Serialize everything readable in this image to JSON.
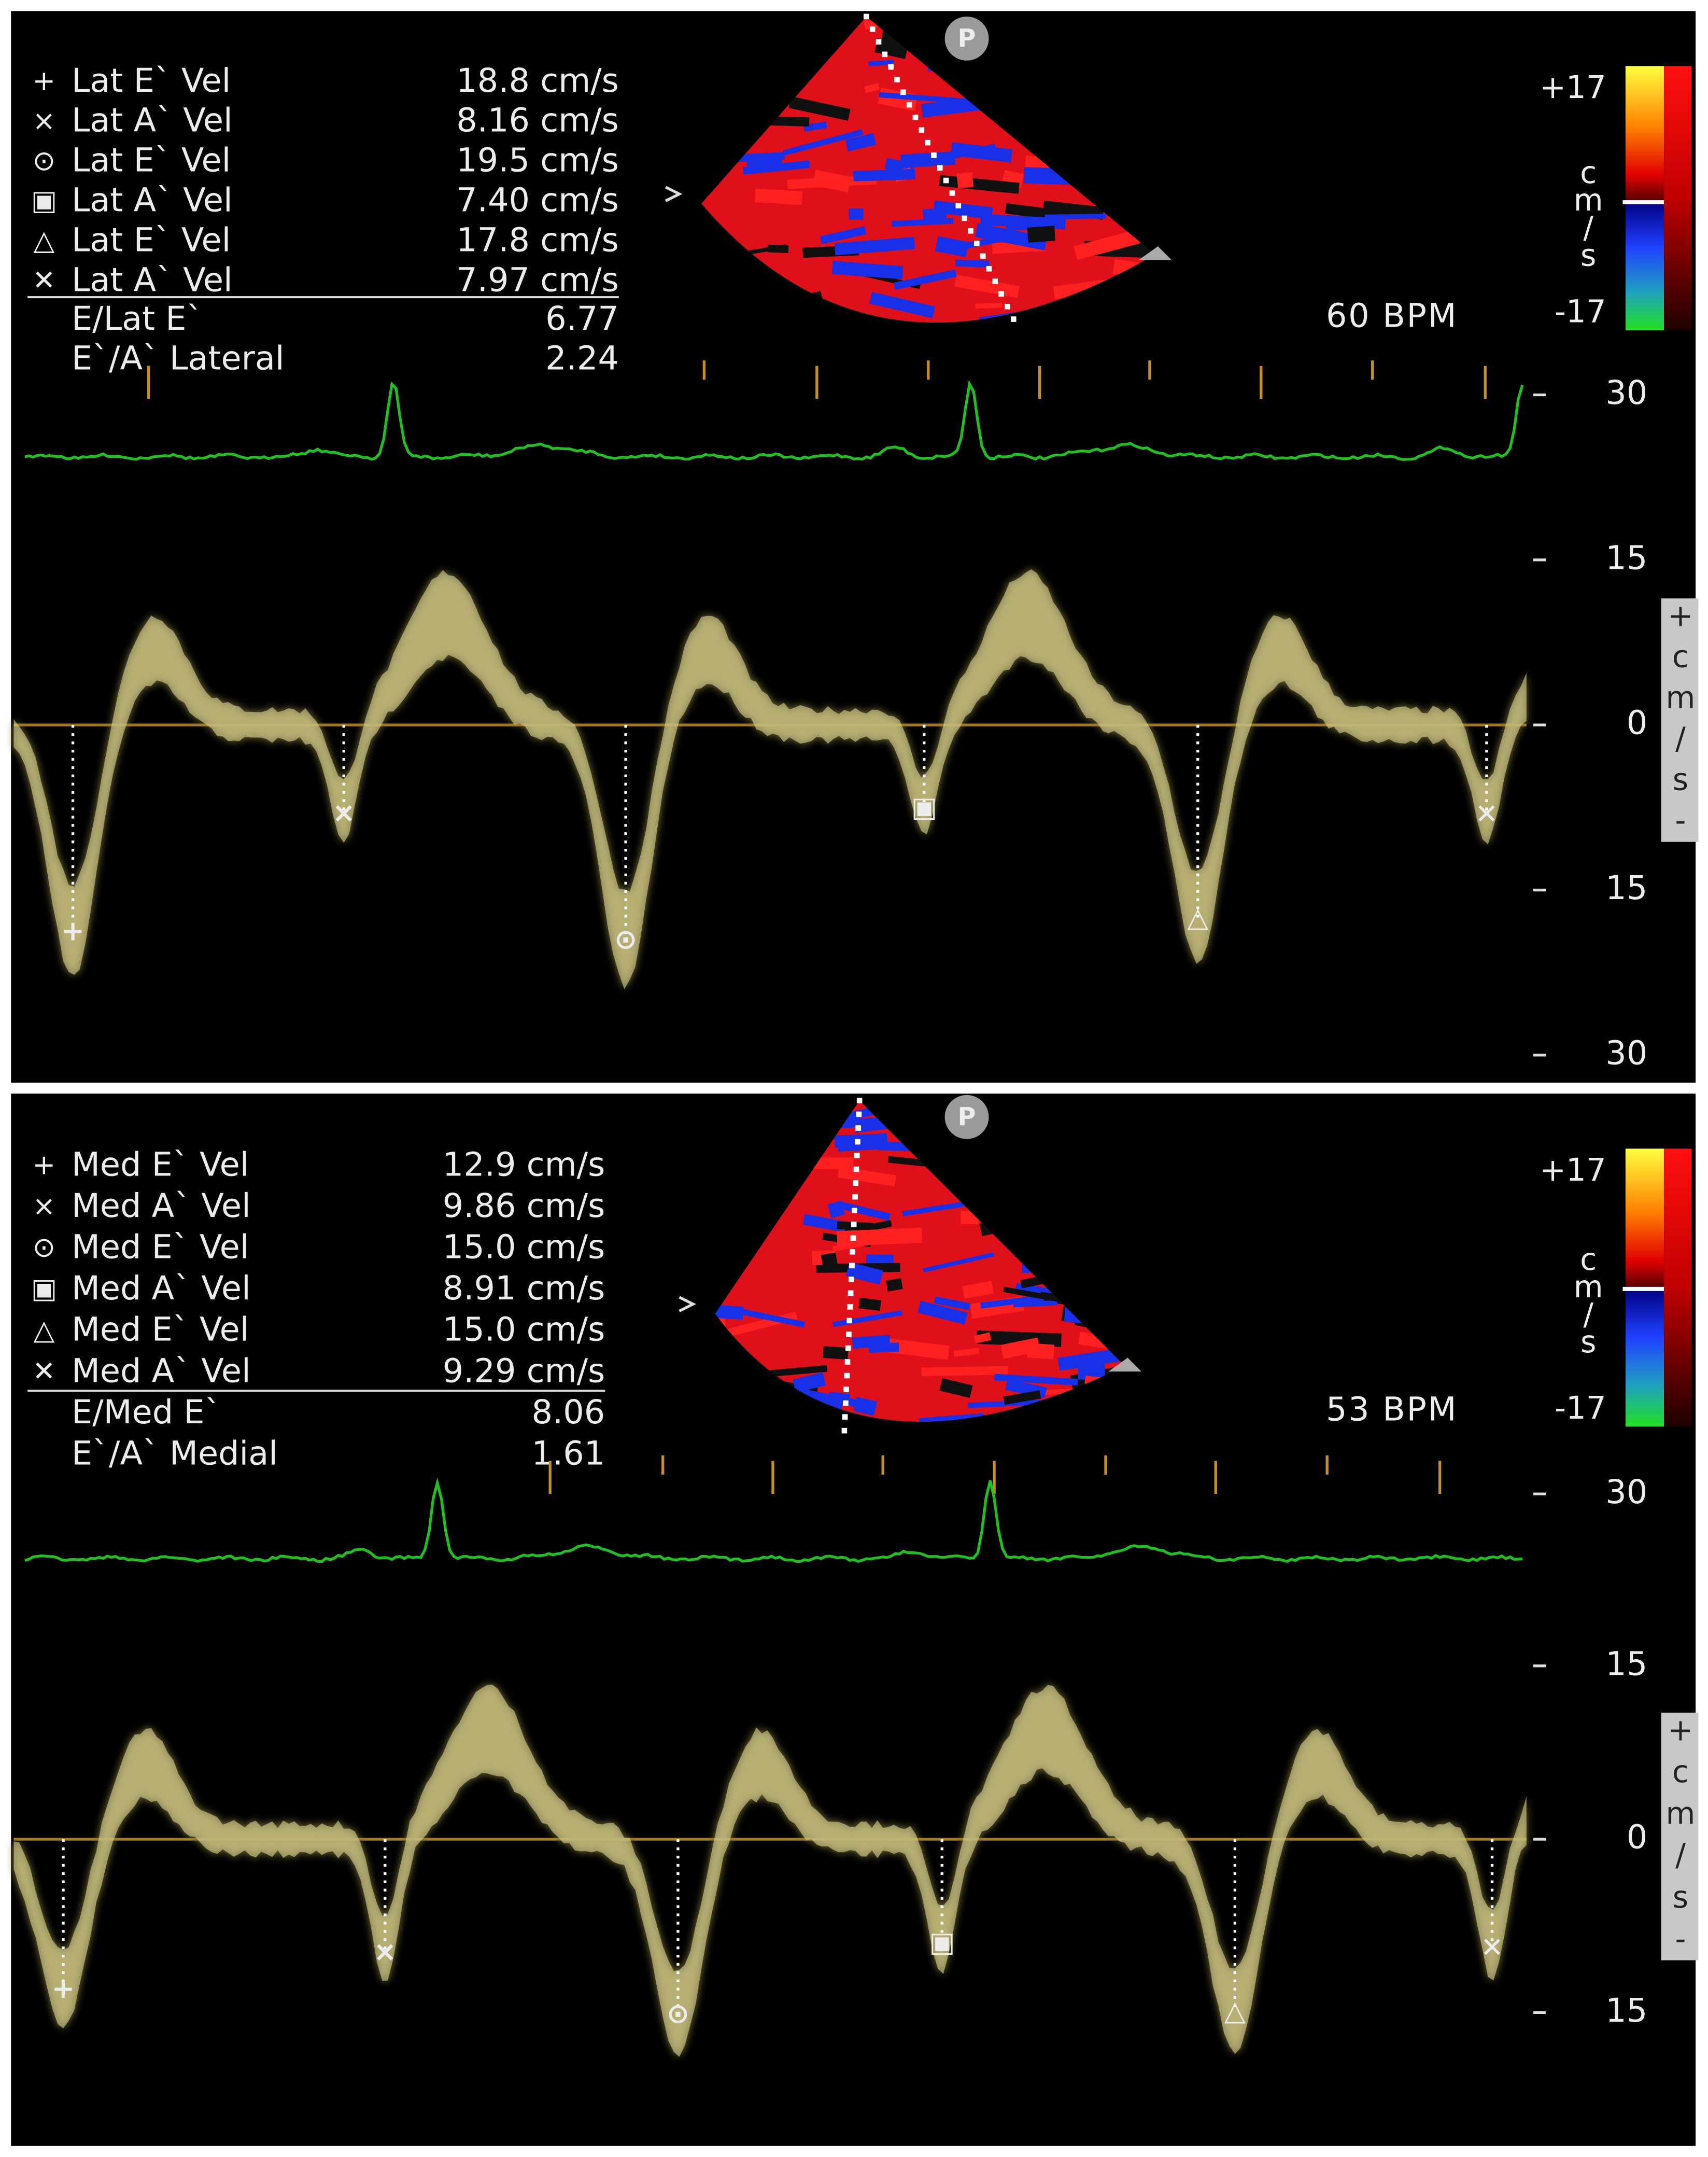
{
  "panels": [
    {
      "measurements": [
        {
          "symbol": "+",
          "name": "Lat E` Vel",
          "value": "18.8 cm/s"
        },
        {
          "symbol": "×",
          "name": "Lat A` Vel",
          "value": "8.16 cm/s"
        },
        {
          "symbol": "⊙",
          "name": "Lat E` Vel",
          "value": "19.5 cm/s"
        },
        {
          "symbol": "▣",
          "name": "Lat A` Vel",
          "value": "7.40 cm/s"
        },
        {
          "symbol": "△",
          "name": "Lat E` Vel",
          "value": "17.8 cm/s"
        },
        {
          "symbol": "✕",
          "name": "Lat A` Vel",
          "value": "7.97 cm/s"
        }
      ],
      "derived": [
        {
          "name": "E/Lat E`",
          "value": "6.77"
        },
        {
          "name": "E`/A` Lateral",
          "value": "2.24"
        }
      ],
      "marker": "P",
      "heart_rate": "60 BPM",
      "color_scale": {
        "max": "+17",
        "min": "-17",
        "unit": [
          "c",
          "m",
          "/",
          "s"
        ]
      },
      "velocity_axis": [
        "30",
        "15",
        "0",
        "15",
        "30"
      ],
      "side_label": [
        "+",
        "c",
        "m",
        "/",
        "s",
        "-"
      ]
    },
    {
      "measurements": [
        {
          "symbol": "+",
          "name": "Med E` Vel",
          "value": "12.9 cm/s"
        },
        {
          "symbol": "×",
          "name": "Med A` Vel",
          "value": "9.86 cm/s"
        },
        {
          "symbol": "⊙",
          "name": "Med E` Vel",
          "value": "15.0 cm/s"
        },
        {
          "symbol": "▣",
          "name": "Med A` Vel",
          "value": "8.91 cm/s"
        },
        {
          "symbol": "△",
          "name": "Med E` Vel",
          "value": "15.0 cm/s"
        },
        {
          "symbol": "✕",
          "name": "Med A` Vel",
          "value": "9.29 cm/s"
        }
      ],
      "derived": [
        {
          "name": "E/Med E`",
          "value": "8.06"
        },
        {
          "name": "E`/A` Medial",
          "value": "1.61"
        }
      ],
      "marker": "P",
      "heart_rate": "53 BPM",
      "color_scale": {
        "max": "+17",
        "min": "-17",
        "unit": [
          "c",
          "m",
          "/",
          "s"
        ]
      },
      "velocity_axis": [
        "30",
        "15",
        "0",
        "15"
      ],
      "side_label": [
        "+",
        "c",
        "m",
        "/",
        "s",
        "-"
      ]
    }
  ]
}
